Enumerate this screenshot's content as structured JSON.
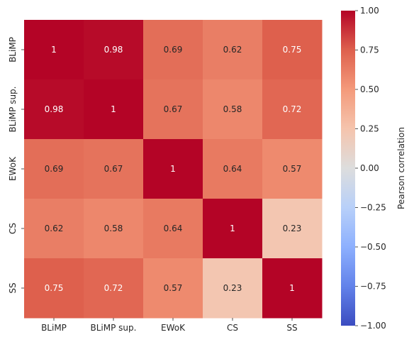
{
  "chart_data": {
    "type": "heatmap",
    "title": "",
    "xlabel": "",
    "ylabel": "",
    "x_categories": [
      "BLiMP",
      "BLiMP sup.",
      "EWoK",
      "CS",
      "SS"
    ],
    "y_categories": [
      "BLiMP",
      "BLiMP sup.",
      "EWoK",
      "CS",
      "SS"
    ],
    "values": [
      [
        1,
        0.98,
        0.69,
        0.62,
        0.75
      ],
      [
        0.98,
        1,
        0.67,
        0.58,
        0.72
      ],
      [
        0.69,
        0.67,
        1,
        0.64,
        0.57
      ],
      [
        0.62,
        0.58,
        0.64,
        1,
        0.23
      ],
      [
        0.75,
        0.72,
        0.57,
        0.23,
        1
      ]
    ],
    "value_labels": [
      [
        "1",
        "0.98",
        "0.69",
        "0.62",
        "0.75"
      ],
      [
        "0.98",
        "1",
        "0.67",
        "0.58",
        "0.72"
      ],
      [
        "0.69",
        "0.67",
        "1",
        "0.64",
        "0.57"
      ],
      [
        "0.62",
        "0.58",
        "0.64",
        "1",
        "0.23"
      ],
      [
        "0.75",
        "0.72",
        "0.57",
        "0.23",
        "1"
      ]
    ],
    "colormap": "coolwarm",
    "vmin": -1,
    "vmax": 1,
    "colorbar": {
      "label": "Pearson correlation",
      "ticks": [
        1.0,
        0.75,
        0.5,
        0.25,
        0.0,
        -0.25,
        -0.5,
        -0.75,
        -1.0
      ],
      "tick_labels": [
        "1.00",
        "0.75",
        "0.50",
        "0.25",
        "0.00",
        "−0.25",
        "−0.50",
        "−0.75",
        "−1.00"
      ]
    }
  }
}
